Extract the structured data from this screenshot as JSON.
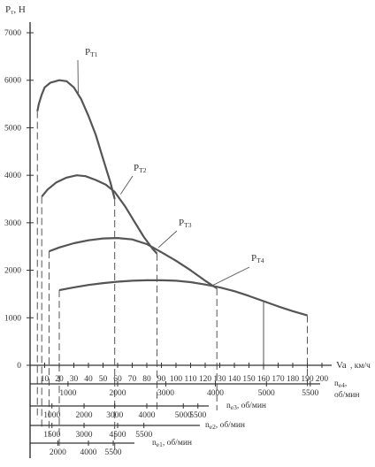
{
  "chart_data": {
    "type": "line",
    "title": "",
    "ylabel": "Рт, Н",
    "xlabel": "Va, км/ч",
    "ylim": [
      0,
      7000
    ],
    "xlim": [
      0,
      200
    ],
    "y_ticks": [
      0,
      1000,
      2000,
      3000,
      4000,
      5000,
      6000,
      7000
    ],
    "x_ticks": [
      10,
      20,
      30,
      40,
      50,
      60,
      70,
      80,
      90,
      100,
      110,
      120,
      130,
      140,
      150,
      160,
      170,
      180,
      190,
      200
    ],
    "grid": false,
    "series": [
      {
        "name": "Рт1",
        "label_main": "Р",
        "label_sub": "Т1",
        "points": [
          [
            5,
            5350
          ],
          [
            6,
            5500
          ],
          [
            8,
            5700
          ],
          [
            10,
            5850
          ],
          [
            14,
            5950
          ],
          [
            20,
            6000
          ],
          [
            25,
            5980
          ],
          [
            30,
            5850
          ],
          [
            35,
            5600
          ],
          [
            40,
            5250
          ],
          [
            45,
            4850
          ],
          [
            50,
            4350
          ],
          [
            55,
            3850
          ],
          [
            58,
            3500
          ]
        ]
      },
      {
        "name": "Рт2",
        "label_main": "Р",
        "label_sub": "Т2",
        "points": [
          [
            8,
            3550
          ],
          [
            12,
            3700
          ],
          [
            18,
            3850
          ],
          [
            25,
            3950
          ],
          [
            32,
            4000
          ],
          [
            38,
            3980
          ],
          [
            45,
            3900
          ],
          [
            52,
            3800
          ],
          [
            58,
            3650
          ],
          [
            65,
            3350
          ],
          [
            72,
            3000
          ],
          [
            78,
            2700
          ],
          [
            84,
            2450
          ],
          [
            87,
            2350
          ]
        ]
      },
      {
        "name": "Рт3",
        "label_main": "Р",
        "label_sub": "Т3",
        "points": [
          [
            13,
            2400
          ],
          [
            20,
            2480
          ],
          [
            30,
            2570
          ],
          [
            40,
            2630
          ],
          [
            50,
            2670
          ],
          [
            60,
            2680
          ],
          [
            70,
            2650
          ],
          [
            80,
            2550
          ],
          [
            90,
            2380
          ],
          [
            100,
            2200
          ],
          [
            110,
            2000
          ],
          [
            120,
            1780
          ],
          [
            128,
            1620
          ]
        ]
      },
      {
        "name": "Рт4",
        "label_main": "Р",
        "label_sub": "Т4",
        "points": [
          [
            20,
            1580
          ],
          [
            30,
            1640
          ],
          [
            40,
            1690
          ],
          [
            50,
            1730
          ],
          [
            60,
            1760
          ],
          [
            70,
            1780
          ],
          [
            80,
            1790
          ],
          [
            90,
            1790
          ],
          [
            100,
            1780
          ],
          [
            110,
            1750
          ],
          [
            120,
            1700
          ],
          [
            130,
            1640
          ],
          [
            140,
            1560
          ],
          [
            150,
            1460
          ],
          [
            160,
            1350
          ],
          [
            170,
            1240
          ],
          [
            180,
            1140
          ],
          [
            190,
            1050
          ]
        ]
      }
    ],
    "drop_lines_x": [
      5,
      8,
      13,
      20,
      58,
      87,
      128,
      160,
      190
    ],
    "engine_speed_axes": [
      {
        "name_main": "n",
        "name_sub": "e4",
        "unit": "об/мин",
        "ticks": [
          {
            "label": "1000",
            "at_speed": 26
          },
          {
            "label": "2000",
            "at_speed": 60
          },
          {
            "label": "3000",
            "at_speed": 93
          },
          {
            "label": "4000",
            "at_speed": 127
          },
          {
            "label": "5000",
            "at_speed": 162
          },
          {
            "label": "5500",
            "at_speed": 192
          }
        ]
      },
      {
        "name_main": "n",
        "name_sub": "e3",
        "unit": "об/мин",
        "ticks": [
          {
            "label": "1000",
            "at_speed": 15
          },
          {
            "label": "2000",
            "at_speed": 37
          },
          {
            "label": "3000",
            "at_speed": 58
          },
          {
            "label": "4000",
            "at_speed": 80
          },
          {
            "label": "5000",
            "at_speed": 105
          },
          {
            "label": "5500",
            "at_speed": 115
          }
        ]
      },
      {
        "name_main": "n",
        "name_sub": "e2",
        "unit": "об/мин",
        "ticks": [
          {
            "label": "1500",
            "at_speed": 15
          },
          {
            "label": "3000",
            "at_speed": 37
          },
          {
            "label": "4500",
            "at_speed": 60
          },
          {
            "label": "5500",
            "at_speed": 78
          }
        ]
      },
      {
        "name_main": "n",
        "name_sub": "e1",
        "unit": "об/мин",
        "ticks": [
          {
            "label": "2000",
            "at_speed": 19
          },
          {
            "label": "4000",
            "at_speed": 40
          },
          {
            "label": "5500",
            "at_speed": 57
          }
        ]
      }
    ],
    "colors": {
      "curve": "#555555",
      "axis": "#333333",
      "text": "#333333"
    }
  }
}
